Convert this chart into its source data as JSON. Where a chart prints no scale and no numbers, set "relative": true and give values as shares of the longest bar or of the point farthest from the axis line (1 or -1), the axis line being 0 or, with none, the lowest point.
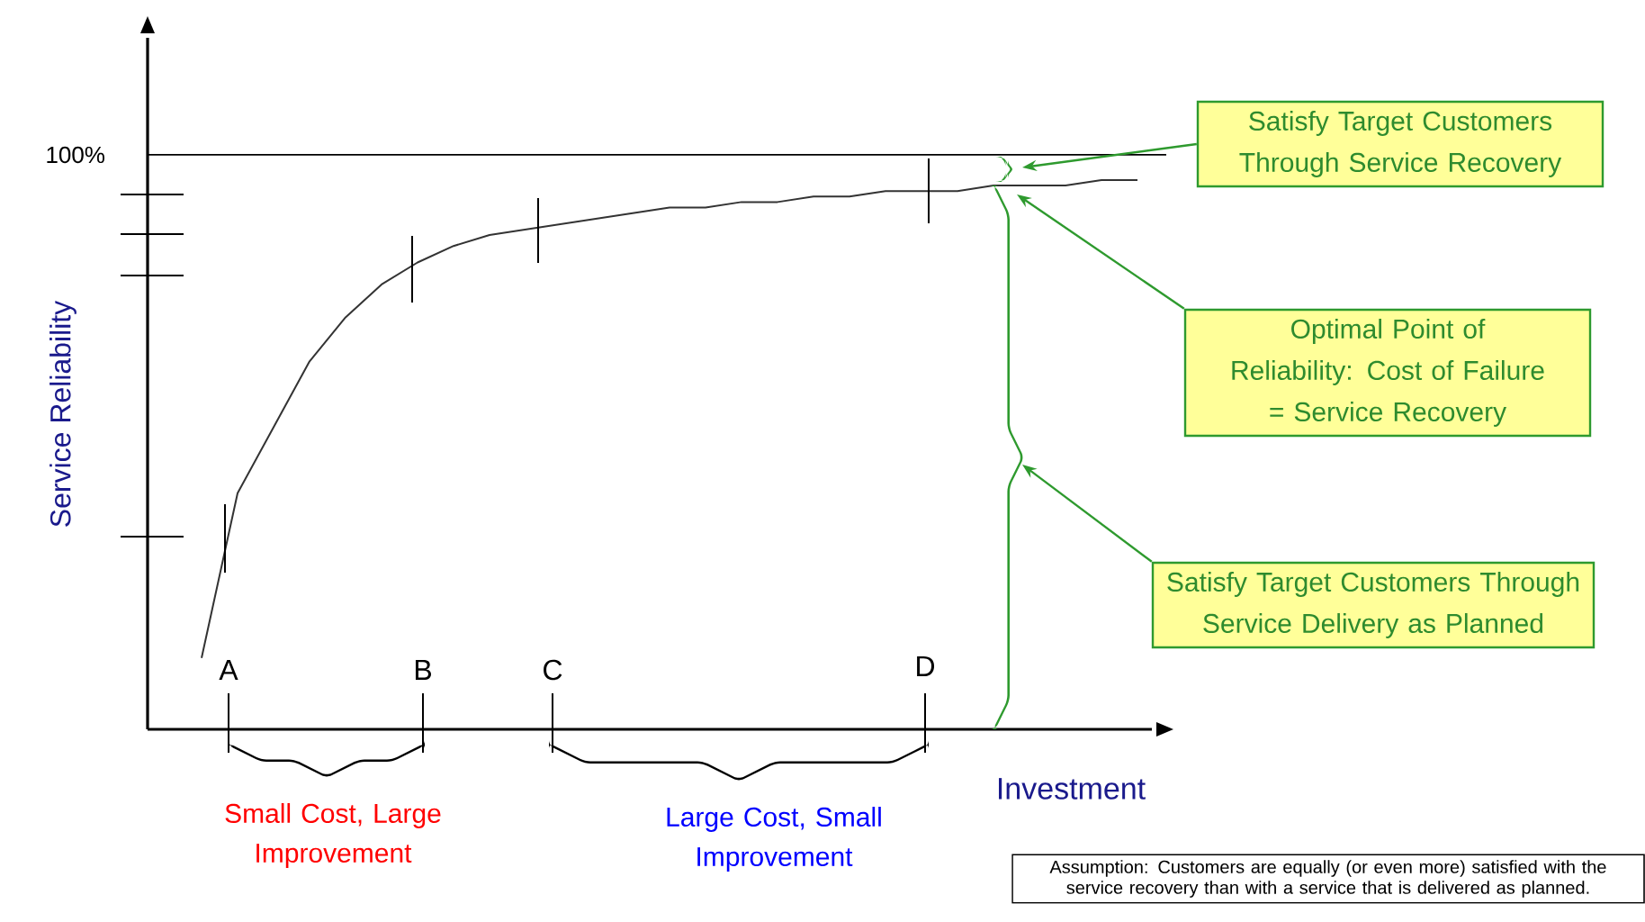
{
  "chart_data": {
    "type": "line",
    "relative": true,
    "color": "#333333",
    "xlabel": "Investment",
    "ylabel": "Service Reliability",
    "categories": [
      null,
      null,
      null,
      null,
      null,
      null,
      null,
      null,
      null,
      null,
      null,
      null,
      null,
      null,
      null,
      null,
      null,
      null,
      null,
      null,
      null,
      null,
      null,
      null,
      null,
      null,
      null
    ],
    "values": [
      0.13,
      0.43,
      0.55,
      0.67,
      0.75,
      0.81,
      0.85,
      0.88,
      0.9,
      0.91,
      0.92,
      0.93,
      0.94,
      0.95,
      0.95,
      0.96,
      0.96,
      0.97,
      0.97,
      0.98,
      0.98,
      0.98,
      0.99,
      0.99,
      0.99,
      1.0,
      1.0
    ],
    "ref_lines": [
      {
        "axis": "y",
        "value": 1.046,
        "color": "#000000"
      }
    ],
    "annotations": [
      "100%",
      "A",
      "B",
      "C",
      "D",
      "Small Cost, Large Improvement",
      "Large Cost, Small Improvement",
      "Satisfy Target Customers Through Service Recovery",
      "Optimal Point of Reliability: Cost of Failure = Service Recovery",
      "Satisfy Target Customers Through Service Delivery as Planned",
      "Assumption: Customers are equally (or even more) satisfied with the service recovery than with a service that is delivered as planned."
    ]
  }
}
